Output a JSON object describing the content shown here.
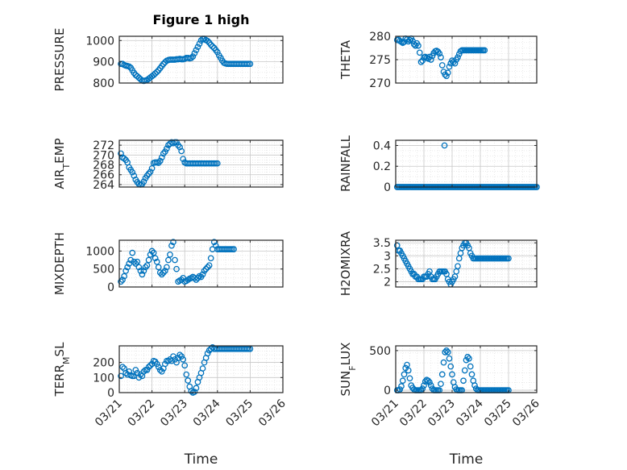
{
  "figure": {
    "title": "Figure 1 high"
  },
  "colors": {
    "marker": "#0072BD",
    "axis": "#262626",
    "grid": "#c8c8c8",
    "background": "#ffffff"
  },
  "chart_data": [
    {
      "type": "scatter",
      "ylabel": "PRESSURE",
      "title": "Figure 1 high",
      "ylim": [
        800,
        1020
      ],
      "yticks": [
        800,
        900,
        1000
      ],
      "xlim": [
        0,
        5
      ],
      "xtick_labels": [],
      "grid": true,
      "x": [
        0.05,
        0.1,
        0.15,
        0.2,
        0.25,
        0.3,
        0.35,
        0.4,
        0.45,
        0.5,
        0.55,
        0.6,
        0.65,
        0.7,
        0.75,
        0.8,
        0.85,
        0.9,
        0.95,
        1.0,
        1.05,
        1.1,
        1.15,
        1.2,
        1.25,
        1.3,
        1.35,
        1.4,
        1.45,
        1.5,
        1.55,
        1.6,
        1.65,
        1.7,
        1.75,
        1.8,
        1.85,
        1.9,
        1.95,
        2.0,
        2.05,
        2.1,
        2.15,
        2.2,
        2.25,
        2.3,
        2.35,
        2.4,
        2.45,
        2.5,
        2.55,
        2.6,
        2.65,
        2.7,
        2.75,
        2.8,
        2.85,
        2.9,
        2.95,
        3.0,
        3.05,
        3.1,
        3.15,
        3.2,
        3.25,
        3.3,
        3.35,
        3.4,
        3.45,
        3.5,
        3.55,
        3.6,
        3.65,
        3.7,
        3.75,
        3.8,
        3.85,
        3.9,
        3.95,
        4.0
      ],
      "values": [
        890,
        890,
        885,
        882,
        880,
        878,
        872,
        860,
        848,
        838,
        832,
        825,
        818,
        812,
        810,
        812,
        815,
        820,
        826,
        832,
        838,
        845,
        852,
        860,
        870,
        880,
        890,
        898,
        905,
        908,
        910,
        910,
        910,
        910,
        912,
        912,
        914,
        912,
        912,
        914,
        918,
        918,
        916,
        918,
        925,
        940,
        955,
        970,
        985,
        1000,
        1008,
        1008,
        1002,
        998,
        990,
        980,
        972,
        965,
        955,
        945,
        930,
        918,
        905,
        895,
        892,
        890,
        890,
        890,
        890,
        890,
        890,
        890,
        890,
        890,
        890,
        890,
        890,
        890,
        890,
        890
      ]
    },
    {
      "type": "scatter",
      "ylabel": "THETA",
      "ylim": [
        270,
        280
      ],
      "yticks": [
        270,
        275,
        280
      ],
      "xlim": [
        0,
        5
      ],
      "xtick_labels": [],
      "grid": true,
      "x": [
        0.05,
        0.1,
        0.15,
        0.2,
        0.25,
        0.3,
        0.35,
        0.4,
        0.45,
        0.5,
        0.55,
        0.6,
        0.65,
        0.7,
        0.75,
        0.8,
        0.85,
        0.9,
        0.95,
        1.0,
        1.05,
        1.1,
        1.15,
        1.2,
        1.25,
        1.3,
        1.35,
        1.4,
        1.45,
        1.5,
        1.55,
        1.6,
        1.65,
        1.7,
        1.75,
        1.8,
        1.85,
        1.9,
        1.95,
        2.0,
        2.05,
        2.1,
        2.15,
        2.2,
        2.25,
        2.3,
        2.35,
        2.4,
        2.45,
        2.5,
        2.55,
        2.6,
        2.65,
        2.7,
        2.75,
        2.8,
        2.85,
        2.9,
        2.95,
        3.0,
        3.05,
        3.1,
        3.15
      ],
      "values": [
        279.2,
        279.3,
        279.0,
        278.8,
        278.6,
        278.8,
        279.5,
        279.3,
        278.9,
        279.2,
        279.5,
        279.0,
        278.3,
        278.0,
        278.5,
        278.0,
        276.5,
        274.5,
        274.8,
        275.5,
        275.6,
        275.4,
        275.2,
        275.6,
        275.0,
        275.8,
        276.4,
        276.8,
        276.9,
        276.7,
        276.3,
        275.5,
        273.8,
        272.4,
        271.8,
        271.5,
        272.2,
        273.5,
        274.2,
        274.8,
        274.5,
        274.2,
        275.0,
        275.5,
        276.2,
        276.8,
        277.0,
        277.0,
        277.0,
        277.0,
        277.0,
        277.0,
        277.0,
        277.0,
        277.0,
        277.0,
        277.0,
        277.0,
        277.0,
        277.0,
        277.0,
        277.0,
        277.0
      ]
    },
    {
      "type": "scatter",
      "ylabel": "AIR_TEMP",
      "ylim": [
        263.5,
        273
      ],
      "yticks": [
        264,
        266,
        268,
        270,
        272
      ],
      "xlim": [
        0,
        5
      ],
      "xtick_labels": [],
      "grid": true,
      "x": [
        0.05,
        0.1,
        0.15,
        0.2,
        0.25,
        0.3,
        0.35,
        0.4,
        0.45,
        0.5,
        0.55,
        0.6,
        0.65,
        0.7,
        0.75,
        0.8,
        0.85,
        0.9,
        0.95,
        1.0,
        1.05,
        1.1,
        1.15,
        1.2,
        1.25,
        1.3,
        1.35,
        1.4,
        1.45,
        1.5,
        1.55,
        1.6,
        1.65,
        1.7,
        1.75,
        1.8,
        1.85,
        1.9,
        1.95,
        2.0,
        2.05,
        2.1,
        2.15,
        2.2,
        2.25,
        2.3,
        2.35,
        2.4,
        2.45,
        2.5,
        2.55,
        2.6,
        2.65,
        2.7,
        2.75,
        2.8,
        2.85,
        2.9,
        2.95,
        3.0
      ],
      "values": [
        270.3,
        269.5,
        269.3,
        269.0,
        268.5,
        267.5,
        267.0,
        266.5,
        265.8,
        265.0,
        264.5,
        264.1,
        264.0,
        264.1,
        264.6,
        265.3,
        265.8,
        266.2,
        266.6,
        267.3,
        268.4,
        268.5,
        268.5,
        268.4,
        268.8,
        269.5,
        270.3,
        270.7,
        271.3,
        272.0,
        272.3,
        272.6,
        272.4,
        272.6,
        272.6,
        272.0,
        271.6,
        270.8,
        269.2,
        268.5,
        268.3,
        268.3,
        268.3,
        268.3,
        268.3,
        268.3,
        268.3,
        268.3,
        268.3,
        268.3,
        268.3,
        268.3,
        268.3,
        268.3,
        268.3,
        268.3,
        268.3,
        268.3,
        268.3,
        268.3
      ]
    },
    {
      "type": "scatter",
      "ylabel": "RAINFALL",
      "ylim": [
        0,
        0.45
      ],
      "yticks": [
        0,
        0.2,
        0.4
      ],
      "xlim": [
        0,
        5
      ],
      "xtick_labels": [],
      "grid": true,
      "x": [
        0.05,
        0.1,
        0.15,
        0.2,
        0.25,
        0.3,
        0.35,
        0.4,
        0.45,
        0.5,
        0.55,
        0.6,
        0.65,
        0.7,
        0.75,
        0.8,
        0.85,
        0.9,
        0.95,
        1.0,
        1.05,
        1.1,
        1.15,
        1.2,
        1.25,
        1.3,
        1.35,
        1.4,
        1.45,
        1.5,
        1.55,
        1.6,
        1.65,
        1.7,
        1.75,
        1.8,
        1.85,
        1.9,
        1.95,
        2.0,
        2.05,
        2.1,
        2.15,
        2.2,
        2.25,
        2.3,
        2.35,
        2.4,
        2.45,
        2.5,
        2.55,
        2.6,
        2.65,
        2.7,
        2.75,
        2.8,
        2.85,
        2.9,
        2.95,
        3.0,
        3.05,
        3.1,
        3.15,
        3.2,
        3.25,
        3.3,
        3.35,
        3.4,
        3.45,
        3.5,
        3.55,
        3.6,
        3.65,
        3.7,
        3.75,
        3.8,
        3.85,
        3.9,
        3.95,
        4.0,
        4.05,
        4.1,
        4.15,
        4.2,
        4.25,
        4.3,
        4.35,
        4.4,
        4.45,
        4.5,
        4.55,
        4.6,
        4.65,
        4.7,
        4.75,
        4.8,
        4.85,
        4.9,
        4.95,
        5.0,
        1.73
      ],
      "values": [
        0,
        0,
        0,
        0,
        0,
        0,
        0,
        0,
        0,
        0,
        0,
        0,
        0,
        0,
        0,
        0,
        0,
        0,
        0,
        0,
        0,
        0,
        0,
        0,
        0,
        0,
        0,
        0,
        0,
        0,
        0,
        0,
        0,
        0,
        0,
        0,
        0,
        0,
        0,
        0,
        0,
        0,
        0,
        0,
        0,
        0,
        0,
        0,
        0,
        0,
        0,
        0,
        0,
        0,
        0,
        0,
        0,
        0,
        0,
        0,
        0,
        0,
        0,
        0,
        0,
        0,
        0,
        0,
        0,
        0,
        0,
        0,
        0,
        0,
        0,
        0,
        0,
        0,
        0,
        0,
        0,
        0,
        0,
        0,
        0,
        0,
        0,
        0,
        0,
        0,
        0,
        0,
        0,
        0,
        0,
        0,
        0,
        0,
        0,
        0,
        0.4
      ]
    },
    {
      "type": "scatter",
      "ylabel": "MIXDEPTH",
      "ylim": [
        0,
        1300
      ],
      "yticks": [
        0,
        500,
        1000
      ],
      "xlim": [
        0,
        5
      ],
      "xtick_labels": [],
      "grid": true,
      "x": [
        0.05,
        0.1,
        0.15,
        0.2,
        0.25,
        0.3,
        0.35,
        0.4,
        0.45,
        0.5,
        0.55,
        0.6,
        0.65,
        0.7,
        0.75,
        0.8,
        0.85,
        0.9,
        0.95,
        1.0,
        1.05,
        1.1,
        1.15,
        1.2,
        1.25,
        1.3,
        1.35,
        1.4,
        1.45,
        1.5,
        1.55,
        1.6,
        1.65,
        1.7,
        1.75,
        1.8,
        1.85,
        1.9,
        1.95,
        2.0,
        2.05,
        2.1,
        2.15,
        2.2,
        2.25,
        2.3,
        2.35,
        2.4,
        2.45,
        2.5,
        2.55,
        2.6,
        2.65,
        2.7,
        2.75,
        2.8,
        2.85,
        2.9,
        2.95,
        3.0,
        3.05,
        3.1,
        3.15,
        3.2,
        3.25,
        3.3,
        3.35,
        3.4,
        3.45,
        3.5
      ],
      "values": [
        150,
        200,
        300,
        450,
        550,
        650,
        750,
        950,
        700,
        650,
        700,
        550,
        450,
        350,
        450,
        550,
        600,
        750,
        900,
        1000,
        950,
        800,
        700,
        550,
        400,
        350,
        400,
        450,
        550,
        750,
        900,
        1150,
        1250,
        750,
        500,
        150,
        180,
        200,
        250,
        150,
        170,
        200,
        230,
        250,
        280,
        250,
        200,
        250,
        300,
        280,
        350,
        450,
        500,
        550,
        600,
        800,
        1050,
        1250,
        1150,
        1050,
        1050,
        1050,
        1050,
        1050,
        1050,
        1050,
        1050,
        1050,
        1050,
        1050
      ]
    },
    {
      "type": "scatter",
      "ylabel": "H2OMIXRA",
      "ylim": [
        1.8,
        3.6
      ],
      "yticks": [
        2,
        2.5,
        3,
        3.5
      ],
      "xlim": [
        0,
        5
      ],
      "xtick_labels": [],
      "grid": true,
      "x": [
        0.05,
        0.1,
        0.15,
        0.2,
        0.25,
        0.3,
        0.35,
        0.4,
        0.45,
        0.5,
        0.55,
        0.6,
        0.65,
        0.7,
        0.75,
        0.8,
        0.85,
        0.9,
        0.95,
        1.0,
        1.05,
        1.1,
        1.15,
        1.2,
        1.25,
        1.3,
        1.35,
        1.4,
        1.45,
        1.5,
        1.55,
        1.6,
        1.65,
        1.7,
        1.75,
        1.8,
        1.85,
        1.9,
        1.95,
        2.0,
        2.05,
        2.1,
        2.15,
        2.2,
        2.25,
        2.3,
        2.35,
        2.4,
        2.45,
        2.5,
        2.55,
        2.6,
        2.65,
        2.7,
        2.75,
        2.8,
        2.85,
        2.9,
        2.95,
        3.0,
        3.05,
        3.1,
        3.15,
        3.2,
        3.25,
        3.3,
        3.35,
        3.4,
        3.45,
        3.5,
        3.55,
        3.6,
        3.65,
        3.7,
        3.75,
        3.8,
        3.85,
        3.9,
        3.95,
        4.0
      ],
      "values": [
        3.4,
        3.2,
        3.2,
        3.1,
        3.0,
        2.9,
        2.8,
        2.7,
        2.6,
        2.5,
        2.4,
        2.3,
        2.3,
        2.2,
        2.2,
        2.1,
        2.1,
        2.1,
        2.1,
        2.2,
        2.2,
        2.2,
        2.3,
        2.4,
        2.2,
        2.1,
        2.1,
        2.1,
        2.2,
        2.3,
        2.4,
        2.4,
        2.4,
        2.4,
        2.4,
        2.3,
        2.1,
        2.0,
        1.9,
        2.0,
        2.1,
        2.2,
        2.4,
        2.6,
        2.9,
        3.1,
        3.3,
        3.4,
        3.5,
        3.5,
        3.4,
        3.3,
        3.1,
        3.0,
        2.9,
        2.9,
        2.9,
        2.9,
        2.9,
        2.9,
        2.9,
        2.9,
        2.9,
        2.9,
        2.9,
        2.9,
        2.9,
        2.9,
        2.9,
        2.9,
        2.9,
        2.9,
        2.9,
        2.9,
        2.9,
        2.9,
        2.9,
        2.9,
        2.9,
        2.9
      ]
    },
    {
      "type": "scatter",
      "ylabel": "TERR_MSL",
      "ylim": [
        0,
        310
      ],
      "yticks": [
        0,
        100,
        200
      ],
      "xlim": [
        0,
        5
      ],
      "xtick_labels": [
        "03/21",
        "03/22",
        "03/23",
        "03/24",
        "03/25",
        "03/26"
      ],
      "xlabel": "Time",
      "grid": true,
      "x": [
        0.05,
        0.1,
        0.15,
        0.2,
        0.25,
        0.3,
        0.35,
        0.4,
        0.45,
        0.5,
        0.55,
        0.6,
        0.65,
        0.7,
        0.75,
        0.8,
        0.85,
        0.9,
        0.95,
        1.0,
        1.05,
        1.1,
        1.15,
        1.2,
        1.25,
        1.3,
        1.35,
        1.4,
        1.45,
        1.5,
        1.55,
        1.6,
        1.65,
        1.7,
        1.75,
        1.8,
        1.85,
        1.9,
        1.95,
        2.0,
        2.05,
        2.1,
        2.15,
        2.2,
        2.25,
        2.3,
        2.35,
        2.4,
        2.45,
        2.5,
        2.55,
        2.6,
        2.65,
        2.7,
        2.75,
        2.8,
        2.85,
        2.9,
        2.95,
        3.0,
        3.05,
        3.1,
        3.15,
        3.2,
        3.25,
        3.3,
        3.35,
        3.4,
        3.45,
        3.5,
        3.55,
        3.6,
        3.65,
        3.7,
        3.75,
        3.8,
        3.85,
        3.9,
        3.95,
        4.0
      ],
      "values": [
        110,
        170,
        160,
        130,
        120,
        140,
        115,
        110,
        110,
        150,
        130,
        100,
        120,
        110,
        140,
        150,
        150,
        170,
        180,
        190,
        210,
        205,
        190,
        170,
        150,
        140,
        160,
        190,
        210,
        210,
        220,
        210,
        240,
        220,
        200,
        230,
        250,
        240,
        220,
        180,
        120,
        80,
        40,
        10,
        0,
        5,
        30,
        70,
        100,
        130,
        160,
        200,
        230,
        260,
        280,
        290,
        300,
        290,
        290,
        290,
        290,
        290,
        290,
        290,
        290,
        290,
        290,
        290,
        290,
        290,
        290,
        290,
        290,
        290,
        290,
        290,
        290,
        290,
        290,
        290
      ]
    },
    {
      "type": "scatter",
      "ylabel": "SUN_FLUX",
      "ylim": [
        -30,
        560
      ],
      "yticks": [
        0,
        500
      ],
      "xlim": [
        0,
        5
      ],
      "xtick_labels": [
        "03/21",
        "03/22",
        "03/23",
        "03/24",
        "03/25",
        "03/26"
      ],
      "xlabel": "Time",
      "grid": true,
      "x": [
        0.05,
        0.1,
        0.15,
        0.2,
        0.25,
        0.3,
        0.35,
        0.4,
        0.45,
        0.5,
        0.55,
        0.6,
        0.65,
        0.7,
        0.75,
        0.8,
        0.85,
        0.9,
        0.95,
        1.0,
        1.05,
        1.1,
        1.15,
        1.2,
        1.25,
        1.3,
        1.35,
        1.4,
        1.45,
        1.5,
        1.55,
        1.6,
        1.65,
        1.7,
        1.75,
        1.8,
        1.85,
        1.9,
        1.95,
        2.0,
        2.05,
        2.1,
        2.15,
        2.2,
        2.25,
        2.3,
        2.35,
        2.4,
        2.45,
        2.5,
        2.55,
        2.6,
        2.65,
        2.7,
        2.75,
        2.8,
        2.85,
        2.9,
        2.95,
        3.0,
        3.05,
        3.1,
        3.15,
        3.2,
        3.25,
        3.3,
        3.35,
        3.4,
        3.45,
        3.5,
        3.55,
        3.6,
        3.65,
        3.7,
        3.75,
        3.8,
        3.85,
        3.9,
        3.95,
        4.0
      ],
      "values": [
        0,
        0,
        10,
        50,
        120,
        200,
        280,
        320,
        250,
        150,
        60,
        30,
        10,
        0,
        0,
        0,
        0,
        0,
        20,
        60,
        110,
        130,
        120,
        100,
        60,
        20,
        0,
        0,
        0,
        0,
        0,
        80,
        200,
        350,
        480,
        500,
        480,
        400,
        300,
        200,
        100,
        40,
        10,
        0,
        0,
        0,
        0,
        120,
        250,
        380,
        420,
        400,
        300,
        200,
        120,
        60,
        20,
        0,
        0,
        0,
        0,
        0,
        0,
        0,
        0,
        0,
        0,
        0,
        0,
        0,
        0,
        0,
        0,
        0,
        0,
        0,
        0,
        0,
        0,
        0
      ]
    }
  ]
}
